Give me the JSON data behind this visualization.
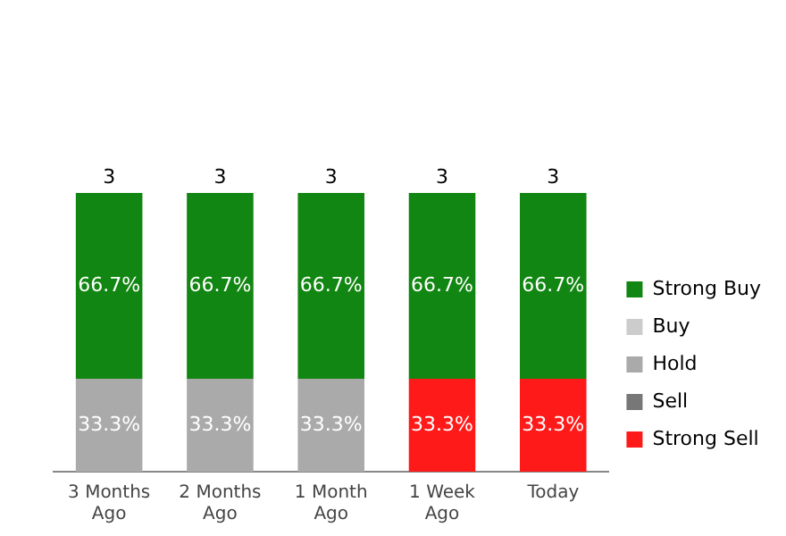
{
  "chart_data": {
    "type": "bar",
    "stacked": true,
    "legend": "right",
    "grid": false,
    "categories": [
      "3 Months Ago",
      "2 Months Ago",
      "1 Month Ago",
      "1 Week Ago",
      "Today"
    ],
    "series": [
      {
        "name": "Strong Sell",
        "color": "#ff1a1a",
        "values": [
          0,
          0,
          0,
          33.3,
          33.3
        ],
        "value_labels": [
          null,
          null,
          null,
          "33.3%",
          "33.3%"
        ]
      },
      {
        "name": "Sell",
        "color": "#777777",
        "values": [
          0,
          0,
          0,
          0,
          0
        ],
        "value_labels": [
          null,
          null,
          null,
          null,
          null
        ]
      },
      {
        "name": "Hold",
        "color": "#aaaaaa",
        "values": [
          33.3,
          33.3,
          33.3,
          0,
          0
        ],
        "value_labels": [
          "33.3%",
          "33.3%",
          "33.3%",
          null,
          null
        ]
      },
      {
        "name": "Buy",
        "color": "#cccccc",
        "values": [
          0,
          0,
          0,
          0,
          0
        ],
        "value_labels": [
          null,
          null,
          null,
          null,
          null
        ]
      },
      {
        "name": "Strong Buy",
        "color": "#128612",
        "values": [
          66.7,
          66.7,
          66.7,
          66.7,
          66.7
        ],
        "value_labels": [
          "66.7%",
          "66.7%",
          "66.7%",
          "66.7%",
          "66.7%"
        ]
      }
    ],
    "annotations": [
      {
        "text": "3",
        "x": "3 Months Ago",
        "y": 100
      },
      {
        "text": "3",
        "x": "2 Months Ago",
        "y": 100
      },
      {
        "text": "3",
        "x": "1 Month Ago",
        "y": 100
      },
      {
        "text": "3",
        "x": "1 Week Ago",
        "y": 100
      },
      {
        "text": "3",
        "x": "Today",
        "y": 100
      }
    ]
  }
}
